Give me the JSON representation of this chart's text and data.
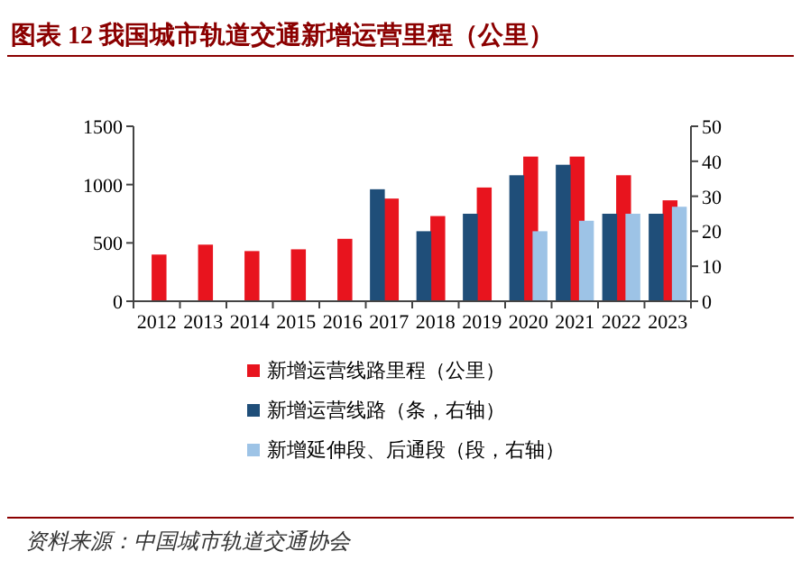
{
  "chart_data": {
    "type": "bar",
    "title": "图表 12   我国城市轨道交通新增运营里程（公里）",
    "categories": [
      "2012",
      "2013",
      "2014",
      "2015",
      "2016",
      "2017",
      "2018",
      "2019",
      "2020",
      "2021",
      "2022",
      "2023"
    ],
    "series": [
      {
        "name": "新增运营线路里程（公里）",
        "color": "#e8141e",
        "values": [
          400,
          485,
          430,
          445,
          535,
          880,
          730,
          975,
          1240,
          1240,
          1080,
          865
        ]
      },
      {
        "name": "新增运营线路（条，右轴）",
        "color": "#1f4e79",
        "axis": "y2",
        "values": [
          null,
          null,
          null,
          null,
          null,
          32,
          20,
          25,
          36,
          39,
          25,
          25
        ]
      },
      {
        "name": "新增延伸段、后通段（段，右轴）",
        "color": "#9dc3e6",
        "axis": "y2",
        "values": [
          null,
          null,
          null,
          null,
          null,
          null,
          null,
          null,
          20,
          23,
          25,
          27
        ]
      }
    ],
    "ylim": [
      0,
      1500
    ],
    "yticks": [
      0,
      500,
      1000,
      1500
    ],
    "y2lim": [
      0,
      50
    ],
    "y2ticks": [
      0,
      10,
      20,
      30,
      40,
      50
    ],
    "legend": "bottom",
    "grid": false,
    "annotations": [
      "资料来源：中国城市轨道交通协会"
    ]
  }
}
